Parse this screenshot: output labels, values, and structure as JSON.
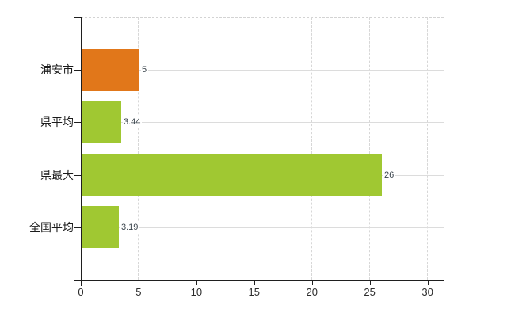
{
  "chart_data": {
    "type": "bar",
    "orientation": "horizontal",
    "categories": [
      "浦安市",
      "県平均",
      "県最大",
      "全国平均"
    ],
    "values": [
      5,
      3.44,
      26,
      3.19
    ],
    "value_labels": [
      "5",
      "3.44",
      "26",
      "3.19"
    ],
    "bar_colors": [
      "#e1771a",
      "#a0c832",
      "#a0c832",
      "#a0c832"
    ],
    "x_tick_labels": [
      "0",
      "5",
      "10",
      "15",
      "20",
      "25",
      "30"
    ],
    "x_tick_values": [
      0,
      5,
      10,
      15,
      20,
      25,
      30
    ],
    "xlim": [
      0,
      31.4
    ],
    "grid": "on",
    "legend": "none",
    "colors": {
      "highlight_bar": "#e1771a",
      "default_bar": "#a0c832",
      "axis": "#1f1f1f",
      "gridline": "#d7d7d7"
    }
  }
}
